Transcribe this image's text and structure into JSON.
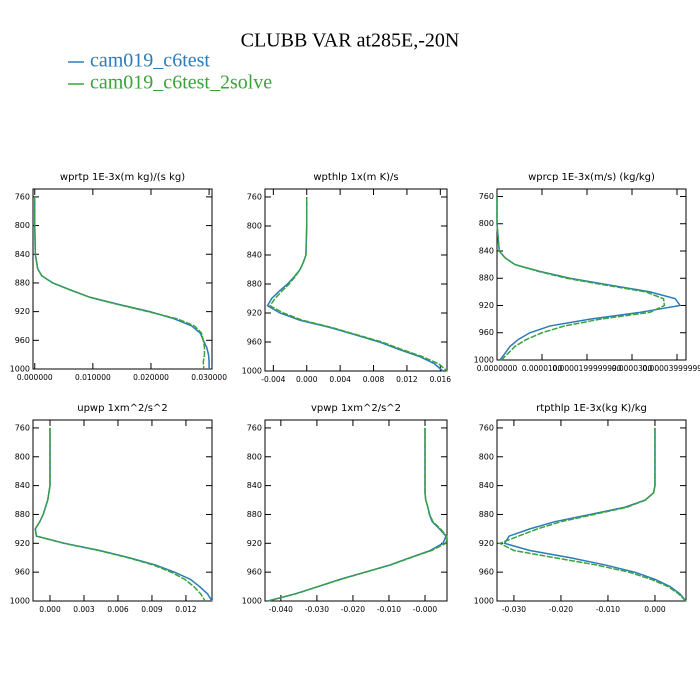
{
  "title": "CLUBB VAR at285E,-20N",
  "chart_data": [
    {
      "type": "line",
      "title": "wprtp  1E-3x(m kg)/(s kg)",
      "y": [
        760,
        800,
        840,
        850,
        860,
        870,
        880,
        890,
        900,
        910,
        920,
        930,
        940,
        950,
        960,
        970,
        980,
        990,
        1000
      ],
      "ylim": [
        1000,
        749
      ],
      "yticks": [
        760,
        800,
        840,
        880,
        920,
        960,
        1000
      ],
      "xlim": [
        -0.0003,
        0.0305
      ],
      "xticks": [
        {
          "value": 0,
          "label": "0.000000"
        },
        {
          "value": 0.01,
          "label": "0.010000"
        },
        {
          "value": 0.02,
          "label": "0.020000"
        },
        {
          "value": 0.03,
          "label": "0.030000"
        }
      ],
      "series": [
        {
          "name": "cam019_c6test",
          "color": "#2b7bba",
          "values": [
            0,
            0,
            0.0001,
            0.0003,
            0.0005,
            0.0012,
            0.0031,
            0.0062,
            0.0095,
            0.0145,
            0.0198,
            0.024,
            0.027,
            0.0285,
            0.029,
            0.0296,
            0.0299,
            0.03,
            0.03
          ]
        },
        {
          "name": "cam019_c6test_2solve",
          "color": "#3aa33a",
          "values": [
            0,
            0,
            0.0001,
            0.0003,
            0.0005,
            0.0012,
            0.0031,
            0.0062,
            0.0095,
            0.0143,
            0.0195,
            0.0245,
            0.0275,
            0.0287,
            0.029,
            0.0292,
            0.0292,
            0.029,
            0.0291
          ]
        }
      ]
    },
    {
      "type": "line",
      "title": "wpthlp  1x(m K)/s",
      "y": [
        760,
        800,
        840,
        850,
        860,
        870,
        880,
        890,
        900,
        910,
        920,
        930,
        940,
        950,
        960,
        970,
        980,
        990,
        1000
      ],
      "ylim": [
        1000,
        749
      ],
      "yticks": [
        760,
        800,
        840,
        880,
        920,
        960,
        1000
      ],
      "xlim": [
        -0.005,
        0.0168
      ],
      "xticks": [
        {
          "value": -0.004,
          "label": "-0.004"
        },
        {
          "value": 0,
          "label": "0.000"
        },
        {
          "value": 0.004,
          "label": "0.004"
        },
        {
          "value": 0.008,
          "label": "0.008"
        },
        {
          "value": 0.012,
          "label": "0.012"
        },
        {
          "value": 0.016,
          "label": "0.016"
        }
      ],
      "series": [
        {
          "name": "cam019_c6test",
          "color": "#2b7bba",
          "values": [
            0,
            0,
            -0.0001,
            -0.0004,
            -0.0008,
            -0.0015,
            -0.0023,
            -0.0033,
            -0.0042,
            -0.0047,
            -0.0032,
            -0.0008,
            0.0028,
            0.0058,
            0.0087,
            0.011,
            0.0135,
            0.0153,
            0.0163
          ]
        },
        {
          "name": "cam019_c6test_2solve",
          "color": "#3aa33a",
          "values": [
            0,
            0,
            -0.0001,
            -0.0004,
            -0.0008,
            -0.0014,
            -0.0021,
            -0.003,
            -0.0038,
            -0.0044,
            -0.0028,
            -0.0005,
            0.003,
            0.006,
            0.009,
            0.0113,
            0.0138,
            0.0158,
            0.0168
          ]
        }
      ]
    },
    {
      "type": "line",
      "title": "wprcp  1E-3x(m/s) (kg/kg)",
      "y": [
        760,
        800,
        840,
        850,
        860,
        870,
        880,
        890,
        900,
        910,
        920,
        930,
        940,
        950,
        960,
        970,
        980,
        990,
        1000
      ],
      "ylim": [
        1000,
        749
      ],
      "yticks": [
        760,
        800,
        840,
        880,
        920,
        960,
        1000
      ],
      "xlim": [
        0,
        4.2e-05
      ],
      "xticks": [
        {
          "value": 0,
          "label": "0.0000000"
        },
        {
          "value": 1e-05,
          "label": "0.0000100"
        },
        {
          "value": 2e-05,
          "label": "0.0000199999990"
        },
        {
          "value": 3e-05,
          "label": "0.0000300"
        },
        {
          "value": 4e-05,
          "label": "0.0000399999990"
        }
      ],
      "series": [
        {
          "name": "cam019_c6test",
          "color": "#2b7bba",
          "values": [
            0,
            0,
            5e-07,
            1.8e-06,
            4e-06,
            9.6e-06,
            1.62e-05,
            2.51e-05,
            3.4e-05,
            3.96e-05,
            4.07e-05,
            3.18e-05,
            2.07e-05,
            1.18e-05,
            7.3e-06,
            4.7e-06,
            2.9e-06,
            1.8e-06,
            7e-07
          ]
        },
        {
          "name": "cam019_c6test_2solve",
          "color": "#3aa33a",
          "values": [
            0,
            0,
            5e-07,
            1.8e-06,
            4e-06,
            9.2e-06,
            1.55e-05,
            2.4e-05,
            3.3e-05,
            3.7e-05,
            3.72e-05,
            3.4e-05,
            2.3e-05,
            1.5e-05,
            1e-05,
            6.5e-06,
            4e-06,
            2.5e-06,
            1e-06
          ]
        }
      ]
    },
    {
      "type": "line",
      "title": "upwp  1xm^2/s^2",
      "y": [
        760,
        800,
        840,
        850,
        860,
        870,
        880,
        890,
        900,
        910,
        920,
        930,
        940,
        950,
        960,
        970,
        980,
        990,
        1000
      ],
      "ylim": [
        1000,
        749
      ],
      "yticks": [
        760,
        800,
        840,
        880,
        920,
        960,
        1000
      ],
      "xlim": [
        -0.0015,
        0.0143
      ],
      "xticks": [
        {
          "value": 0,
          "label": "0.000"
        },
        {
          "value": 0.003,
          "label": "0.003"
        },
        {
          "value": 0.006,
          "label": "0.006"
        },
        {
          "value": 0.009,
          "label": "0.009"
        },
        {
          "value": 0.012,
          "label": "0.012"
        }
      ],
      "series": [
        {
          "name": "cam019_c6test",
          "color": "#2b7bba",
          "values": [
            0,
            0,
            0,
            -0.0001,
            -0.0002,
            -0.0004,
            -0.0006,
            -0.0009,
            -0.0013,
            -0.0012,
            0.0013,
            0.0044,
            0.007,
            0.0093,
            0.011,
            0.0124,
            0.0132,
            0.0139,
            0.0143
          ]
        },
        {
          "name": "cam019_c6test_2solve",
          "color": "#3aa33a",
          "values": [
            0,
            0,
            0,
            -0.0001,
            -0.0002,
            -0.0004,
            -0.0006,
            -0.0009,
            -0.0013,
            -0.0012,
            0.0012,
            0.0043,
            0.0069,
            0.0091,
            0.0107,
            0.0119,
            0.0127,
            0.0133,
            0.0137
          ]
        }
      ]
    },
    {
      "type": "line",
      "title": "vpwp  1xm^2/s^2",
      "y": [
        760,
        800,
        840,
        850,
        860,
        870,
        880,
        890,
        900,
        910,
        920,
        930,
        940,
        950,
        960,
        970,
        980,
        990,
        1000
      ],
      "ylim": [
        1000,
        749
      ],
      "yticks": [
        760,
        800,
        840,
        880,
        920,
        960,
        1000
      ],
      "xlim": [
        -0.0444,
        0.0061
      ],
      "xticks": [
        {
          "value": -0.04,
          "label": "-0.040"
        },
        {
          "value": -0.03,
          "label": "-0.030"
        },
        {
          "value": -0.02,
          "label": "-0.020"
        },
        {
          "value": -0.01,
          "label": "-0.010"
        },
        {
          "value": 0,
          "label": "-0.000"
        }
      ],
      "series": [
        {
          "name": "cam019_c6test",
          "color": "#2b7bba",
          "values": [
            0,
            0,
            0,
            0,
            0.0002,
            0.0008,
            0.0012,
            0.002,
            0.004,
            0.0058,
            0.005,
            0.0014,
            -0.0042,
            -0.0097,
            -0.0167,
            -0.0236,
            -0.0297,
            -0.036,
            -0.0436
          ]
        },
        {
          "name": "cam019_c6test_2solve",
          "color": "#3aa33a",
          "values": [
            0,
            0,
            0,
            0,
            0.0002,
            0.0008,
            0.0013,
            0.0022,
            0.0043,
            0.006,
            0.0058,
            0.0018,
            -0.004,
            -0.0095,
            -0.0165,
            -0.0234,
            -0.0296,
            -0.0358,
            -0.0435
          ]
        }
      ]
    },
    {
      "type": "line",
      "title": "rtpthlp  1E-3x(kg K)/kg",
      "y": [
        760,
        800,
        840,
        850,
        860,
        870,
        880,
        890,
        900,
        910,
        920,
        930,
        940,
        950,
        960,
        970,
        980,
        990,
        1000
      ],
      "ylim": [
        1000,
        749
      ],
      "yticks": [
        760,
        800,
        840,
        880,
        920,
        960,
        1000
      ],
      "xlim": [
        -0.0336,
        0.0066
      ],
      "xticks": [
        {
          "value": -0.03,
          "label": "-0.030"
        },
        {
          "value": -0.02,
          "label": "-0.020"
        },
        {
          "value": -0.01,
          "label": "-0.010"
        },
        {
          "value": 0,
          "label": "0.000"
        }
      ],
      "series": [
        {
          "name": "cam019_c6test",
          "color": "#2b7bba",
          "values": [
            0,
            0,
            0,
            -0.0003,
            -0.0021,
            -0.0064,
            -0.0138,
            -0.0213,
            -0.0266,
            -0.031,
            -0.032,
            -0.0266,
            -0.018,
            -0.0106,
            -0.0043,
            0,
            0.0032,
            0.0053,
            0.0066
          ]
        },
        {
          "name": "cam019_c6test_2solve",
          "color": "#3aa33a",
          "values": [
            0,
            0,
            0,
            -0.0003,
            -0.002,
            -0.006,
            -0.013,
            -0.02,
            -0.025,
            -0.029,
            -0.033,
            -0.03,
            -0.0213,
            -0.0125,
            -0.0055,
            -0.0008,
            0.0028,
            0.005,
            0.0066
          ]
        }
      ]
    }
  ]
}
